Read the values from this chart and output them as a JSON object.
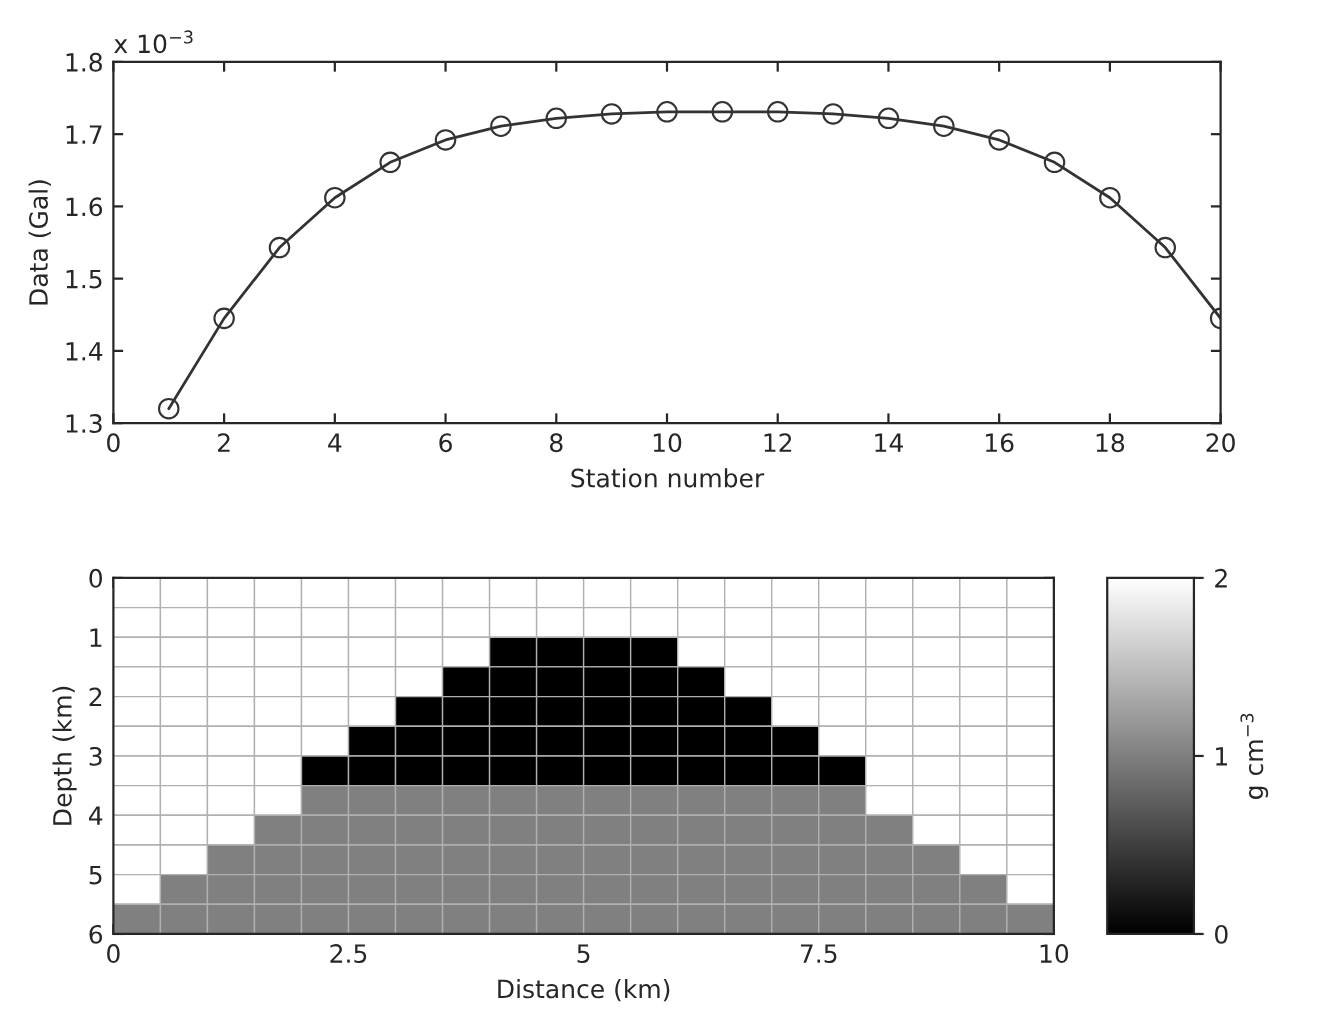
{
  "chart_data": [
    {
      "type": "line",
      "xlabel": "Station number",
      "ylabel": "Data (Gal)",
      "annotations": [
        "x 10$^{−3}$"
      ],
      "marker": "circle",
      "line_style": "solid",
      "grid": false,
      "x": [
        1,
        2,
        3,
        4,
        5,
        6,
        7,
        8,
        9,
        10,
        11,
        12,
        13,
        14,
        15,
        16,
        17,
        18,
        19,
        20
      ],
      "series": [
        {
          "color": "#333333",
          "values": [
            1.32,
            1.445,
            1.543,
            1.612,
            1.661,
            1.692,
            1.711,
            1.722,
            1.728,
            1.731,
            1.731,
            1.731,
            1.728,
            1.722,
            1.711,
            1.692,
            1.661,
            1.612,
            1.543,
            1.445
          ]
        }
      ],
      "xlim": [
        0,
        20
      ],
      "xticks": [
        0,
        2,
        4,
        6,
        8,
        10,
        12,
        14,
        16,
        18,
        20
      ],
      "ylim": [
        1.3,
        1.8
      ],
      "yticks": [
        1.3,
        1.4,
        1.5,
        1.6,
        1.7,
        1.8
      ]
    },
    {
      "type": "heatmap",
      "xlabel": "Distance (km)",
      "ylabel": "Depth (km)",
      "clabel": "g cm$^{−3}$",
      "xlim": [
        0,
        10
      ],
      "xticks": [
        0,
        2.5,
        5,
        7.5,
        10
      ],
      "ylim": [
        6,
        0
      ],
      "yticks": [
        0,
        1,
        2,
        3,
        4,
        5,
        6
      ],
      "clim": [
        0,
        2
      ],
      "cticks": [
        0,
        1,
        2
      ],
      "cells": [
        [
          2,
          2,
          2,
          2,
          2,
          2,
          2,
          2,
          2,
          2,
          2,
          2,
          2,
          2,
          2,
          2,
          2,
          2,
          2,
          2
        ],
        [
          2,
          2,
          2,
          2,
          2,
          2,
          2,
          2,
          2,
          2,
          2,
          2,
          2,
          2,
          2,
          2,
          2,
          2,
          2,
          2
        ],
        [
          2,
          2,
          2,
          2,
          2,
          2,
          2,
          2,
          0,
          0,
          0,
          0,
          2,
          2,
          2,
          2,
          2,
          2,
          2,
          2
        ],
        [
          2,
          2,
          2,
          2,
          2,
          2,
          2,
          0,
          0,
          0,
          0,
          0,
          0,
          2,
          2,
          2,
          2,
          2,
          2,
          2
        ],
        [
          2,
          2,
          2,
          2,
          2,
          2,
          0,
          0,
          0,
          0,
          0,
          0,
          0,
          0,
          2,
          2,
          2,
          2,
          2,
          2
        ],
        [
          2,
          2,
          2,
          2,
          2,
          0,
          0,
          0,
          0,
          0,
          0,
          0,
          0,
          0,
          0,
          2,
          2,
          2,
          2,
          2
        ],
        [
          2,
          2,
          2,
          2,
          0,
          0,
          0,
          0,
          0,
          0,
          0,
          0,
          0,
          0,
          0,
          0,
          2,
          2,
          2,
          2
        ],
        [
          2,
          2,
          2,
          2,
          1,
          1,
          1,
          1,
          1,
          1,
          1,
          1,
          1,
          1,
          1,
          1,
          2,
          2,
          2,
          2
        ],
        [
          2,
          2,
          2,
          1,
          1,
          1,
          1,
          1,
          1,
          1,
          1,
          1,
          1,
          1,
          1,
          1,
          1,
          2,
          2,
          2
        ],
        [
          2,
          2,
          1,
          1,
          1,
          1,
          1,
          1,
          1,
          1,
          1,
          1,
          1,
          1,
          1,
          1,
          1,
          1,
          2,
          2
        ],
        [
          2,
          1,
          1,
          1,
          1,
          1,
          1,
          1,
          1,
          1,
          1,
          1,
          1,
          1,
          1,
          1,
          1,
          1,
          1,
          2
        ],
        [
          1,
          1,
          1,
          1,
          1,
          1,
          1,
          1,
          1,
          1,
          1,
          1,
          1,
          1,
          1,
          1,
          1,
          1,
          1,
          1
        ]
      ]
    }
  ]
}
